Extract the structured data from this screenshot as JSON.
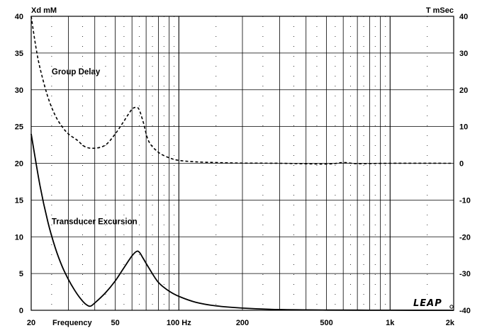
{
  "chart_data": {
    "type": "line",
    "xscale": "log",
    "xlim": [
      20,
      2000
    ],
    "ylim_left": [
      0,
      40
    ],
    "ylim_right": [
      -40,
      40
    ],
    "grid": true,
    "ylabel_left": "Xd mM",
    "ylabel_right": "T mSec",
    "xlabel": "Frequency",
    "x_ticks": [
      {
        "value": 20,
        "label": "20"
      },
      {
        "value": 50,
        "label": "50"
      },
      {
        "value": 100,
        "label": "100 Hz"
      },
      {
        "value": 200,
        "label": "200"
      },
      {
        "value": 500,
        "label": "500"
      },
      {
        "value": 1000,
        "label": "1k"
      },
      {
        "value": 2000,
        "label": "2k"
      }
    ],
    "y_ticks_left": [
      "0",
      "5",
      "10",
      "15",
      "20",
      "25",
      "30",
      "35",
      "40"
    ],
    "y_ticks_right": [
      "-40",
      "-30",
      "-20",
      "-10",
      "0",
      "10",
      "20",
      "30",
      "40"
    ],
    "series": [
      {
        "name": "Transducer Excursion",
        "axis": "left",
        "style": "solid",
        "x": [
          20,
          22,
          24,
          26,
          28,
          30,
          32,
          34,
          36,
          38,
          40,
          45,
          50,
          55,
          60,
          63,
          65,
          68,
          72,
          80,
          90,
          100,
          120,
          150,
          200,
          300,
          500,
          1000,
          2000
        ],
        "y": [
          24,
          17,
          12,
          8.5,
          6,
          4.2,
          2.8,
          1.7,
          0.9,
          0.55,
          1.0,
          2.4,
          4.0,
          5.8,
          7.4,
          8.0,
          7.9,
          7.0,
          5.8,
          3.8,
          2.6,
          1.9,
          1.1,
          0.6,
          0.3,
          0.1,
          0.03,
          0.01,
          0
        ]
      },
      {
        "name": "Group Delay",
        "axis": "right",
        "style": "dashed",
        "x": [
          20,
          21,
          22,
          24,
          26,
          28,
          30,
          33,
          36,
          40,
          45,
          50,
          55,
          60,
          63,
          65,
          68,
          72,
          80,
          90,
          100,
          120,
          150,
          200,
          300,
          500,
          600,
          700,
          1000,
          2000
        ],
        "y": [
          40,
          32,
          26,
          18,
          13,
          10,
          8,
          6.3,
          4.5,
          4.1,
          5,
          8,
          11.5,
          14.7,
          15.2,
          14.5,
          11,
          6,
          3,
          1.5,
          0.8,
          0.4,
          0.2,
          0.05,
          0,
          -0.2,
          0.2,
          -0.1,
          0,
          0
        ]
      }
    ],
    "annotations": [
      {
        "text": "Group Delay",
        "x": 25,
        "y": 32.5
      },
      {
        "text": "Transducer Excursion",
        "x": 25,
        "y": 12.1
      }
    ],
    "logo": "LEAP"
  }
}
